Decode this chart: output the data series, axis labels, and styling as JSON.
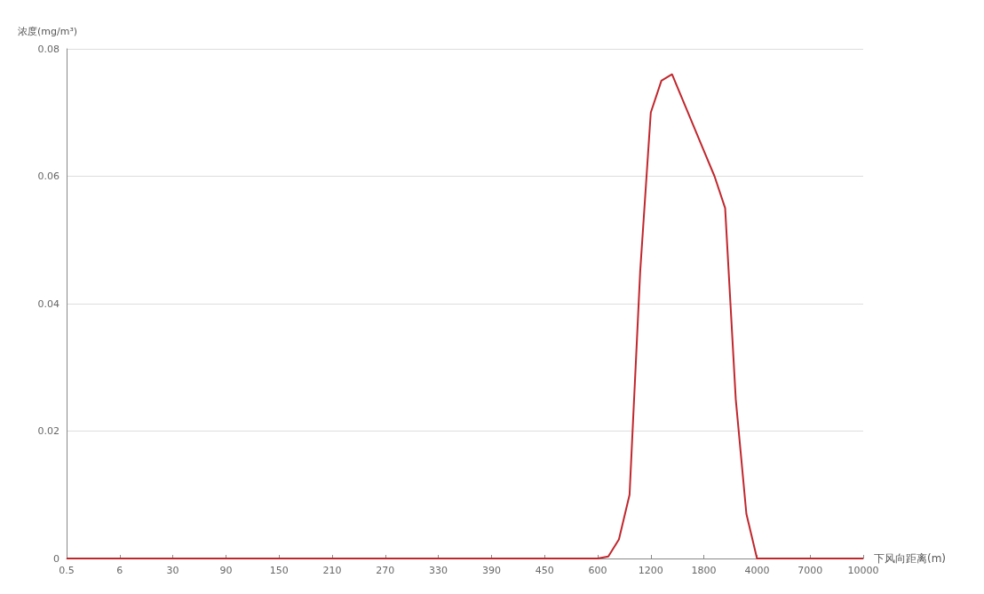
{
  "chart_data": {
    "type": "line",
    "xlabel": "下风向距离(m)",
    "ylabel": "浓度(mg/m³)",
    "categories": [
      "0.5",
      null,
      null,
      null,
      null,
      "6",
      null,
      null,
      null,
      null,
      "30",
      null,
      null,
      null,
      null,
      "90",
      null,
      null,
      null,
      null,
      "150",
      null,
      null,
      null,
      null,
      "210",
      null,
      null,
      null,
      null,
      "270",
      null,
      null,
      null,
      null,
      "330",
      null,
      null,
      null,
      null,
      "390",
      null,
      null,
      null,
      null,
      "450",
      null,
      null,
      null,
      null,
      "600",
      null,
      null,
      null,
      null,
      "1200",
      null,
      null,
      null,
      null,
      "1800",
      null,
      null,
      null,
      null,
      "4000",
      null,
      null,
      null,
      null,
      "7000",
      null,
      null,
      null,
      null,
      "10000"
    ],
    "series": [
      {
        "color": "#c0272d",
        "values": [
          0,
          0,
          0,
          0,
          0,
          0,
          0,
          0,
          0,
          0,
          0,
          0,
          0,
          0,
          0,
          0,
          0,
          0,
          0,
          0,
          0,
          0,
          0,
          0,
          0,
          0,
          0,
          0,
          0,
          0,
          0,
          0,
          0,
          0,
          0,
          0,
          0,
          0,
          0,
          0,
          0,
          0,
          0,
          0,
          0,
          0,
          0,
          0,
          0,
          0,
          0,
          0.0003,
          0.003,
          0.01,
          0.045,
          0.07,
          0.075,
          0.076,
          0.072,
          0.068,
          0.064,
          0.06,
          0.055,
          0.025,
          0.007,
          0,
          0,
          0,
          0,
          0,
          0,
          0,
          0,
          0,
          0,
          0
        ]
      }
    ],
    "ylim": [
      0,
      0.08
    ],
    "yticks": [
      0,
      0.02,
      0.04,
      0.06,
      0.08
    ],
    "grid": "y",
    "marker": "none",
    "line_style": "solid"
  }
}
